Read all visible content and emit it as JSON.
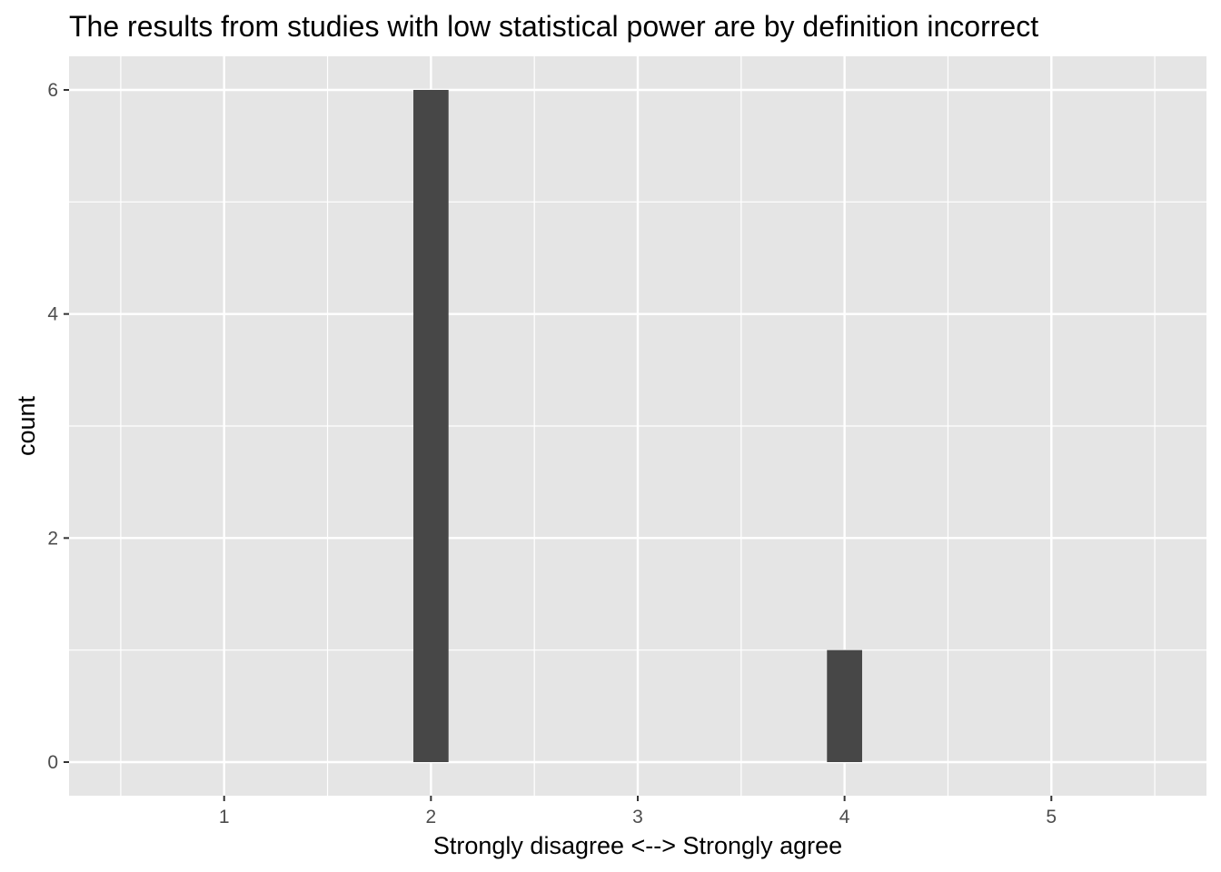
{
  "chart_data": {
    "type": "bar",
    "title": "The results from studies with low statistical power are by definition incorrect",
    "xlabel": "Strongly disagree <--> Strongly agree",
    "ylabel": "count",
    "x": [
      2,
      4
    ],
    "values": [
      6,
      1
    ],
    "bar_width": 0.17,
    "xlim": [
      0.25,
      5.75
    ],
    "ylim": [
      -0.3,
      6.3
    ],
    "x_ticks": [
      1,
      2,
      3,
      4,
      5
    ],
    "y_ticks": [
      0,
      2,
      4,
      6
    ],
    "x_tick_labels": [
      "1",
      "2",
      "3",
      "4",
      "5"
    ],
    "y_tick_labels": [
      "0",
      "2",
      "4",
      "6"
    ],
    "grid": true,
    "panel_color": "#e5e5e5",
    "grid_color": "#ffffff",
    "bar_color": "#474747"
  }
}
